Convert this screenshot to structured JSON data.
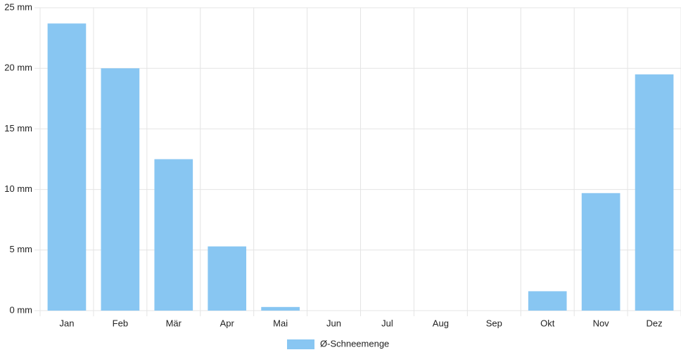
{
  "chart_data": {
    "type": "bar",
    "categories": [
      "Jan",
      "Feb",
      "Mär",
      "Apr",
      "Mai",
      "Jun",
      "Jul",
      "Aug",
      "Sep",
      "Okt",
      "Nov",
      "Dez"
    ],
    "series": [
      {
        "name": "Ø-Schneemenge",
        "color": "#88c6f2",
        "values": [
          23.7,
          20.0,
          12.5,
          5.3,
          0.3,
          0,
          0,
          0,
          0,
          1.6,
          9.7,
          19.5
        ]
      }
    ],
    "ylim": [
      0,
      25
    ],
    "yticks": [
      {
        "value": 0,
        "label": "0 mm"
      },
      {
        "value": 5,
        "label": "5 mm"
      },
      {
        "value": 10,
        "label": "10 mm"
      },
      {
        "value": 15,
        "label": "15 mm"
      },
      {
        "value": 20,
        "label": "20 mm"
      },
      {
        "value": 25,
        "label": "25 mm"
      }
    ],
    "grid": true,
    "legend": "bottom"
  }
}
